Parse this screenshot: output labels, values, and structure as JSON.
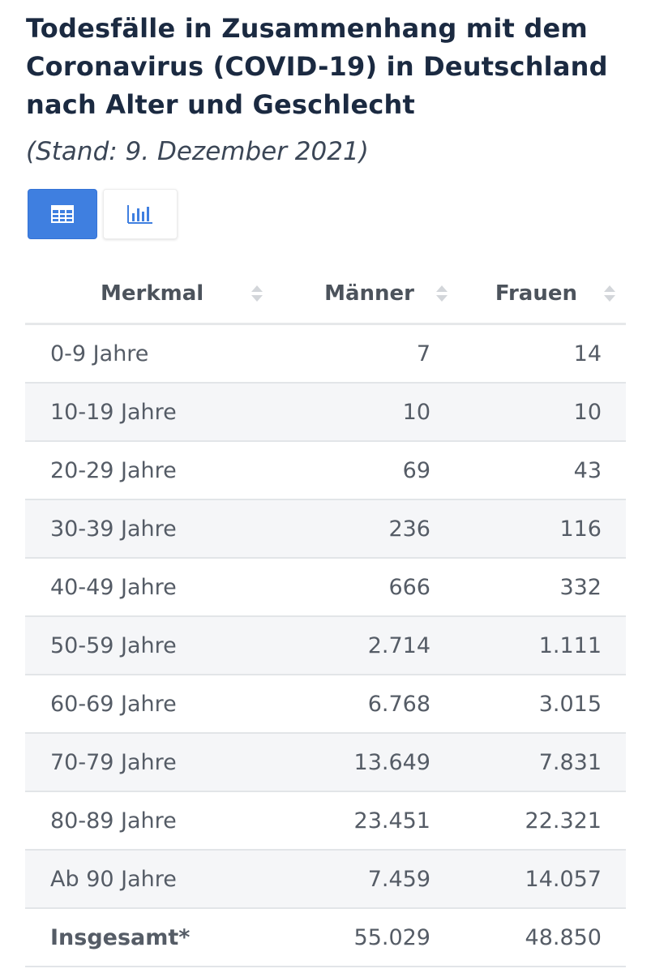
{
  "page": {
    "title": "Todesfälle in Zusammenhang mit dem Coronavirus (COVID-19) in Deutschland nach Alter und Geschlecht",
    "subtitle": "(Stand: 9. Dezember 2021)"
  },
  "view_toggle": {
    "active": "table",
    "table_icon": "table-icon",
    "chart_icon": "bar-chart-icon",
    "active_color": "#3f7fe0"
  },
  "table": {
    "columns": [
      "Merkmal",
      "Männer",
      "Frauen"
    ],
    "rows": [
      {
        "label": "0-9 Jahre",
        "maenner": "7",
        "frauen": "14"
      },
      {
        "label": "10-19 Jahre",
        "maenner": "10",
        "frauen": "10"
      },
      {
        "label": "20-29 Jahre",
        "maenner": "69",
        "frauen": "43"
      },
      {
        "label": "30-39 Jahre",
        "maenner": "236",
        "frauen": "116"
      },
      {
        "label": "40-49 Jahre",
        "maenner": "666",
        "frauen": "332"
      },
      {
        "label": "50-59 Jahre",
        "maenner": "2.714",
        "frauen": "1.111"
      },
      {
        "label": "60-69 Jahre",
        "maenner": "6.768",
        "frauen": "3.015"
      },
      {
        "label": "70-79 Jahre",
        "maenner": "13.649",
        "frauen": "7.831"
      },
      {
        "label": "80-89 Jahre",
        "maenner": "23.451",
        "frauen": "22.321"
      },
      {
        "label": "Ab 90 Jahre",
        "maenner": "7.459",
        "frauen": "14.057"
      },
      {
        "label": "Insgesamt*",
        "maenner": "55.029",
        "frauen": "48.850"
      }
    ]
  }
}
